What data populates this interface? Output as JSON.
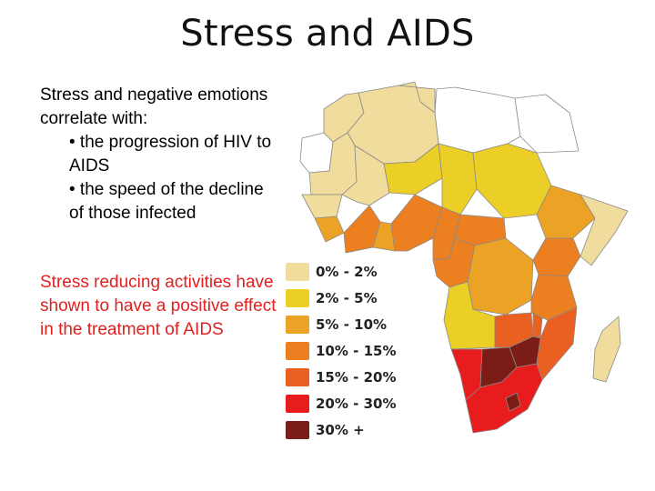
{
  "slide": {
    "title": "Stress and AIDS",
    "intro": "Stress and negative emotions correlate with:",
    "bullets": [
      "• the progression of HIV to AIDS",
      "• the speed of the decline of those infected"
    ],
    "note": "Stress reducing activities have shown to have a positive effect in the treatment of AIDS"
  },
  "legend": [
    {
      "label": "0% - 2%",
      "color": "#f0dc9c"
    },
    {
      "label": "2% - 5%",
      "color": "#eccf26"
    },
    {
      "label": "5% - 10%",
      "color": "#eca224"
    },
    {
      "label": "10% - 15%",
      "color": "#ec8020"
    },
    {
      "label": "15% - 20%",
      "color": "#ea6020"
    },
    {
      "label": "20% - 30%",
      "color": "#e81c1c"
    },
    {
      "label": "30% +",
      "color": "#7b1d16"
    }
  ]
}
